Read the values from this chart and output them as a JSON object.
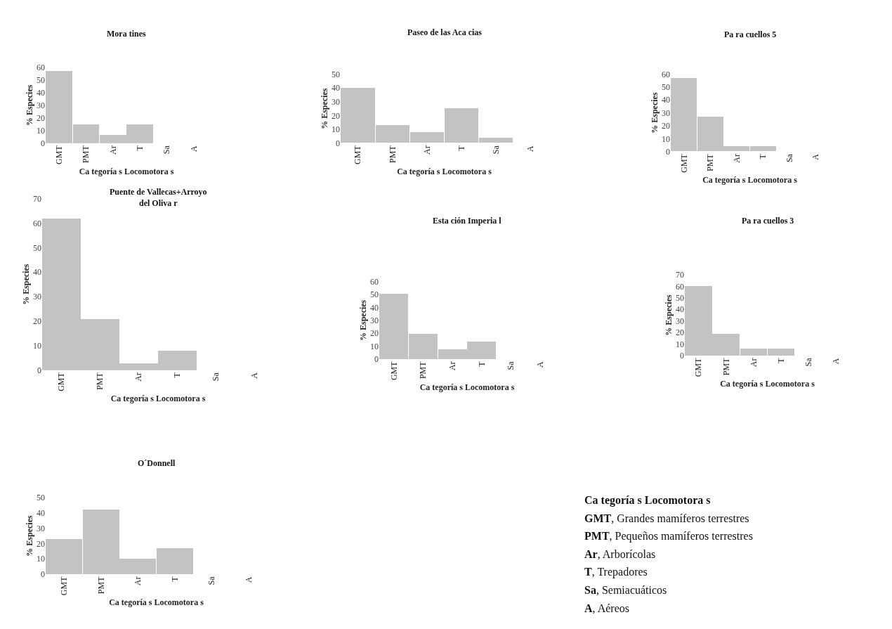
{
  "chart_data": [
    {
      "type": "bar",
      "title": "Mora tines",
      "xlabel": "Ca tegoría s Locomotora s",
      "ylabel": "% Especies",
      "categories": [
        "GMT",
        "PMT",
        "Ar",
        "T",
        "Sa",
        "A"
      ],
      "values": [
        57,
        15,
        7,
        15,
        0,
        0
      ],
      "color": "#c3c3c3",
      "ylim": [
        0,
        60
      ],
      "yticks": [
        0,
        10,
        20,
        30,
        40,
        50,
        60
      ]
    },
    {
      "type": "bar",
      "title": "Paseo de las Aca cias",
      "xlabel": "Ca tegoría s Locomotora s",
      "ylabel": "% Especies",
      "categories": [
        "GMT",
        "PMT",
        "Ar",
        "T",
        "Sa",
        "A"
      ],
      "values": [
        40,
        13,
        8,
        25,
        4,
        0
      ],
      "color": "#c3c3c3",
      "ylim": [
        0,
        50
      ],
      "yticks": [
        0,
        10,
        20,
        30,
        40,
        50
      ]
    },
    {
      "type": "bar",
      "title": "Pa ra cuellos 5",
      "xlabel": "Ca tegoría s Locomotora s",
      "ylabel": "% Especies",
      "categories": [
        "GMT",
        "PMT",
        "Ar",
        "T",
        "Sa",
        "A"
      ],
      "values": [
        57,
        27,
        4,
        4,
        0,
        0
      ],
      "color": "#c3c3c3",
      "ylim": [
        0,
        60
      ],
      "yticks": [
        0,
        10,
        20,
        30,
        40,
        50,
        60
      ]
    },
    {
      "type": "bar",
      "title": "Puente de Vallecas+Arroyo del Oliva r",
      "xlabel": "Ca tegoría s Locomotora s",
      "ylabel": "% Especies",
      "categories": [
        "GMT",
        "PMT",
        "Ar",
        "T",
        "Sa",
        "A"
      ],
      "values": [
        62,
        21,
        3,
        8,
        0,
        0
      ],
      "color": "#c3c3c3",
      "ylim": [
        0,
        70
      ],
      "yticks": [
        0,
        10,
        20,
        30,
        40,
        50,
        60,
        70
      ]
    },
    {
      "type": "bar",
      "title": "Esta ción Imperia l",
      "xlabel": "Ca tegoría s Locomotora s",
      "ylabel": "% Especies",
      "categories": [
        "GMT",
        "PMT",
        "Ar",
        "T",
        "Sa",
        "A"
      ],
      "values": [
        51,
        20,
        8,
        14,
        0,
        0
      ],
      "color": "#c3c3c3",
      "ylim": [
        0,
        60
      ],
      "yticks": [
        0,
        10,
        20,
        30,
        40,
        50,
        60
      ]
    },
    {
      "type": "bar",
      "title": "Pa ra cuellos 3",
      "xlabel": "Ca tegoría s Locomotora s",
      "ylabel": "% Especies",
      "categories": [
        "GMT",
        "PMT",
        "Ar",
        "T",
        "Sa",
        "A"
      ],
      "values": [
        60,
        19,
        6,
        6,
        0,
        0
      ],
      "color": "#c3c3c3",
      "ylim": [
        0,
        70
      ],
      "yticks": [
        0,
        10,
        20,
        30,
        40,
        50,
        60,
        70
      ]
    },
    {
      "type": "bar",
      "title": "O´Donnell",
      "xlabel": "Ca tegoría s Locomotora s",
      "ylabel": "% Especies",
      "categories": [
        "GMT",
        "PMT",
        "Ar",
        "T",
        "Sa",
        "A"
      ],
      "values": [
        23,
        42,
        10,
        17,
        0,
        0
      ],
      "color": "#c3c3c3",
      "ylim": [
        0,
        50
      ],
      "yticks": [
        0,
        10,
        20,
        30,
        40,
        50
      ]
    },
    {
      "type": "other",
      "title": "Ca tegoría s Locomotora s",
      "annotations": [
        "GMT, Grandes mamíferos terrestres",
        "PMT, Pequeños mamíferos terrestres",
        "Ar, Arborícolas",
        "T, Trepadores",
        "Sa, Semiacuáticos",
        "A, Aéreos"
      ]
    }
  ]
}
